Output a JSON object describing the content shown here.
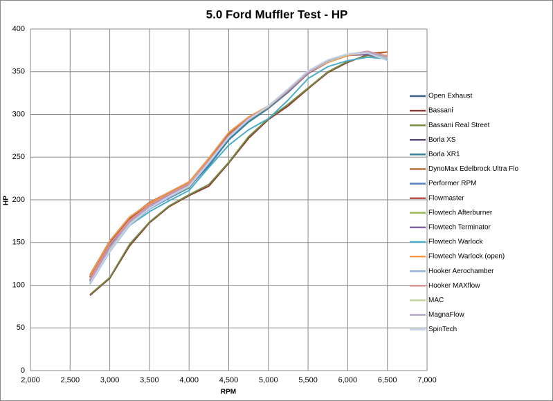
{
  "chart_data": {
    "type": "line",
    "title": "5.0 Ford Muffler Test - HP",
    "x_label": "RPM",
    "y_label": "HP",
    "x": [
      2750,
      3000,
      3250,
      3500,
      3750,
      4000,
      4250,
      4500,
      4750,
      5000,
      5250,
      5500,
      5750,
      6000,
      6250,
      6500
    ],
    "xlim": [
      2000,
      7000
    ],
    "xticks": [
      {
        "value": 2000,
        "label": "2,000"
      },
      {
        "value": 2500,
        "label": "2,500"
      },
      {
        "value": 3000,
        "label": "3,000"
      },
      {
        "value": 3500,
        "label": "3,500"
      },
      {
        "value": 4000,
        "label": "4,000"
      },
      {
        "value": 4500,
        "label": "4,500"
      },
      {
        "value": 5000,
        "label": "5,000"
      },
      {
        "value": 5500,
        "label": "5,500"
      },
      {
        "value": 6000,
        "label": "6,000"
      },
      {
        "value": 6500,
        "label": "6,500"
      },
      {
        "value": 7000,
        "label": "7,000"
      }
    ],
    "ylim": [
      0,
      400
    ],
    "yticks": [
      0,
      50,
      100,
      150,
      200,
      250,
      300,
      350,
      400
    ],
    "grid": true,
    "legend": "right",
    "series": [
      {
        "name": "Open Exhaust",
        "color": "#3a5f8b",
        "values": [
          110,
          151,
          178,
          196,
          208,
          220,
          247,
          277,
          296,
          310,
          328,
          350,
          362,
          370,
          371,
          366
        ]
      },
      {
        "name": "Bassani",
        "color": "#8e3b39",
        "values": [
          88,
          108,
          146,
          173,
          192,
          205,
          216,
          243,
          272,
          294,
          310,
          330,
          349,
          361,
          370,
          373
        ]
      },
      {
        "name": "Bassani Real Street",
        "color": "#758b42",
        "values": [
          89,
          109,
          148,
          174,
          193,
          206,
          218,
          244,
          274,
          295,
          312,
          331,
          350,
          362,
          369,
          366
        ]
      },
      {
        "name": "Borla XS",
        "color": "#5f4a79",
        "values": [
          106,
          146,
          175,
          194,
          206,
          218,
          243,
          272,
          294,
          308,
          327,
          348,
          361,
          369,
          371,
          365
        ]
      },
      {
        "name": "Borla XR1",
        "color": "#388094",
        "values": [
          105,
          145,
          172,
          190,
          203,
          215,
          240,
          270,
          291,
          307,
          326,
          348,
          361,
          369,
          372,
          367
        ]
      },
      {
        "name": "DynoMax Edelbrock Ultra Flo",
        "color": "#b86f33",
        "values": [
          112,
          152,
          179,
          197,
          209,
          221,
          248,
          278,
          296,
          309,
          327,
          349,
          362,
          370,
          372,
          373
        ]
      },
      {
        "name": "Performer RPM",
        "color": "#4f81bd",
        "values": [
          104,
          142,
          171,
          189,
          202,
          214,
          242,
          272,
          293,
          309,
          329,
          350,
          362,
          370,
          371,
          364
        ]
      },
      {
        "name": "Flowmaster",
        "color": "#c0504d",
        "values": [
          109,
          149,
          177,
          195,
          207,
          219,
          246,
          276,
          295,
          309,
          327,
          348,
          361,
          369,
          372,
          366
        ]
      },
      {
        "name": "Flowtech Afterburner",
        "color": "#9bbb59",
        "values": [
          102,
          141,
          173,
          190,
          203,
          215,
          244,
          273,
          294,
          308,
          328,
          349,
          362,
          370,
          373,
          367
        ]
      },
      {
        "name": "Flowtech Terminator",
        "color": "#8064a2",
        "values": [
          106,
          147,
          176,
          194,
          206,
          218,
          245,
          275,
          294,
          308,
          327,
          348,
          361,
          369,
          370,
          365
        ]
      },
      {
        "name": "Flowtech Warlock",
        "color": "#4bacc6",
        "values": [
          103,
          140,
          170,
          186,
          199,
          211,
          238,
          264,
          282,
          295,
          317,
          342,
          356,
          363,
          367,
          365
        ]
      },
      {
        "name": "Flowtech Warlock (open)",
        "color": "#f79646",
        "values": [
          111,
          152,
          180,
          196,
          209,
          221,
          249,
          279,
          297,
          310,
          328,
          349,
          361,
          369,
          372,
          369
        ]
      },
      {
        "name": "Hooker Aerochamber",
        "color": "#95b3d7",
        "values": [
          101,
          139,
          170,
          189,
          203,
          216,
          243,
          273,
          294,
          310,
          330,
          351,
          363,
          370,
          372,
          365
        ]
      },
      {
        "name": "Hooker MAXflow",
        "color": "#d99694",
        "values": [
          107,
          148,
          176,
          194,
          207,
          219,
          246,
          275,
          295,
          309,
          328,
          349,
          362,
          370,
          374,
          368
        ]
      },
      {
        "name": "MAC",
        "color": "#c3d69b",
        "values": [
          103,
          143,
          173,
          191,
          204,
          216,
          244,
          274,
          294,
          309,
          329,
          350,
          362,
          370,
          373,
          366
        ]
      },
      {
        "name": "MagnaFlow",
        "color": "#b3a2c7",
        "values": [
          104,
          144,
          174,
          192,
          205,
          217,
          245,
          275,
          295,
          310,
          329,
          350,
          363,
          371,
          373,
          367
        ]
      },
      {
        "name": "SpinTech",
        "color": "#c5d3e8",
        "values": [
          102,
          140,
          171,
          190,
          204,
          216,
          244,
          273,
          294,
          310,
          330,
          351,
          364,
          371,
          372,
          363
        ]
      }
    ]
  }
}
